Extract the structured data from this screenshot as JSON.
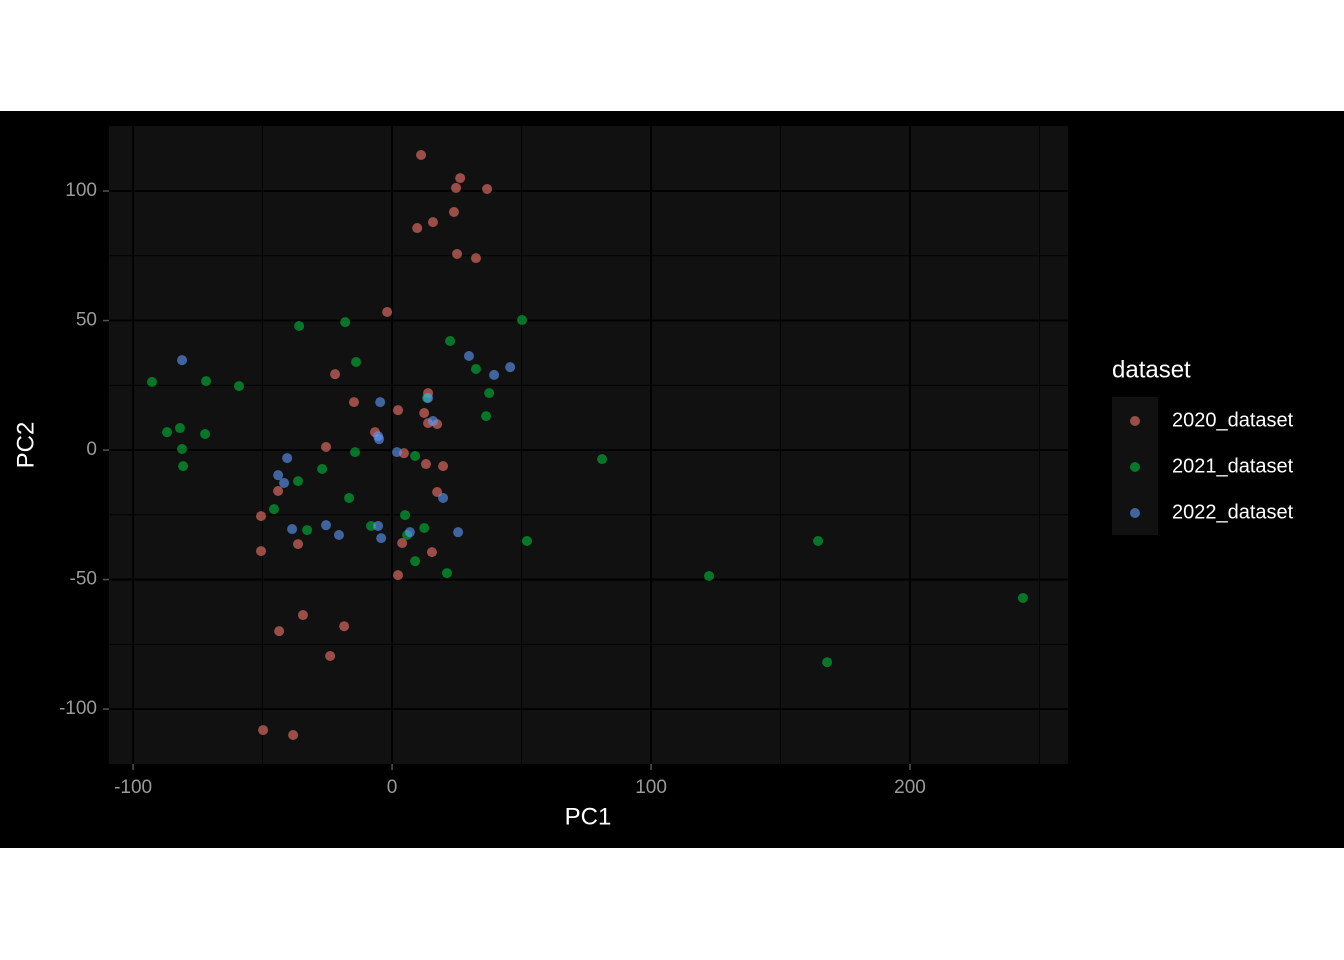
{
  "chart_data": {
    "type": "scatter",
    "x_label": "PC1",
    "y_label": "PC2",
    "legend_title": "dataset",
    "legend": "right",
    "alpha": 0.6,
    "grid": true,
    "xlim": [
      -109.3,
      261
    ],
    "ylim": [
      -121.2,
      125.1
    ],
    "xticks": [
      -100,
      0,
      100,
      200
    ],
    "yticks": [
      -100,
      -50,
      0,
      50,
      100
    ],
    "xminor": [
      -50,
      50,
      150,
      250
    ],
    "yminor": [
      -75,
      -25,
      25,
      75
    ],
    "series": [
      {
        "name": "2020_dataset",
        "color": "#F8766D",
        "x": [
          11.2,
          26.3,
          24.7,
          36.7,
          23.9,
          15.8,
          9.7,
          25.1,
          32.4,
          -1.9,
          -22.0,
          -14.7,
          13.9,
          2.3,
          12.4,
          13.9,
          17.4,
          -6.6,
          -25.5,
          4.6,
          13.1,
          19.7,
          17.4,
          -44.0,
          -50.6,
          -36.3,
          3.9,
          15.4,
          -50.6,
          2.3,
          -34.4,
          -43.6,
          -18.5,
          -23.9,
          -49.8,
          -38.2
        ],
        "values": [
          113.9,
          105.0,
          101.2,
          100.8,
          91.9,
          88.0,
          85.7,
          75.7,
          74.1,
          53.3,
          29.3,
          18.5,
          22.0,
          15.4,
          14.3,
          10.4,
          10.0,
          6.9,
          1.2,
          -1.2,
          -5.4,
          -6.2,
          -16.2,
          -15.8,
          -25.5,
          -36.3,
          -35.9,
          -39.4,
          -39.0,
          -48.3,
          -63.7,
          -69.9,
          -68.0,
          -79.5,
          -108.1,
          -110.0
        ]
      },
      {
        "name": "2021_dataset",
        "color": "#00BA38",
        "x": [
          -92.7,
          -71.8,
          -59.1,
          -86.9,
          -81.9,
          -72.2,
          -81.1,
          -80.7,
          -35.9,
          -18.1,
          -13.9,
          22.4,
          50.2,
          32.4,
          37.5,
          36.3,
          13.5,
          -14.3,
          8.9,
          -27.0,
          -36.3,
          -16.6,
          -45.6,
          -32.8,
          -8.1,
          5.0,
          12.4,
          5.8,
          52.1,
          8.9,
          21.2,
          81.1,
          122.4,
          164.5,
          168.0,
          243.6
        ],
        "values": [
          26.3,
          26.6,
          24.7,
          6.9,
          8.5,
          6.2,
          0.4,
          -6.2,
          47.9,
          49.4,
          34.0,
          42.1,
          50.2,
          31.3,
          22.0,
          13.1,
          20.1,
          -0.8,
          -2.3,
          -7.3,
          -12.0,
          -18.5,
          -22.8,
          -30.9,
          -29.3,
          -25.1,
          -30.1,
          -32.8,
          -35.1,
          -42.9,
          -47.5,
          -3.5,
          -48.6,
          -35.1,
          -81.9,
          -57.1
        ]
      },
      {
        "name": "2022_dataset",
        "color": "#619CFF",
        "x": [
          -81.1,
          29.7,
          45.6,
          39.4,
          13.9,
          -4.6,
          15.8,
          -5.4,
          -5.0,
          1.9,
          -40.5,
          -44.0,
          -41.7,
          19.7,
          -38.6,
          -25.5,
          -20.5,
          -5.4,
          -4.2,
          6.9,
          25.5
        ],
        "values": [
          34.7,
          36.3,
          32.0,
          29.0,
          20.1,
          18.5,
          11.2,
          5.4,
          4.2,
          -0.8,
          -3.1,
          -9.7,
          -12.7,
          -18.5,
          -30.5,
          -29.0,
          -32.8,
          -29.3,
          -34.0,
          -31.7,
          -31.7
        ]
      }
    ]
  }
}
